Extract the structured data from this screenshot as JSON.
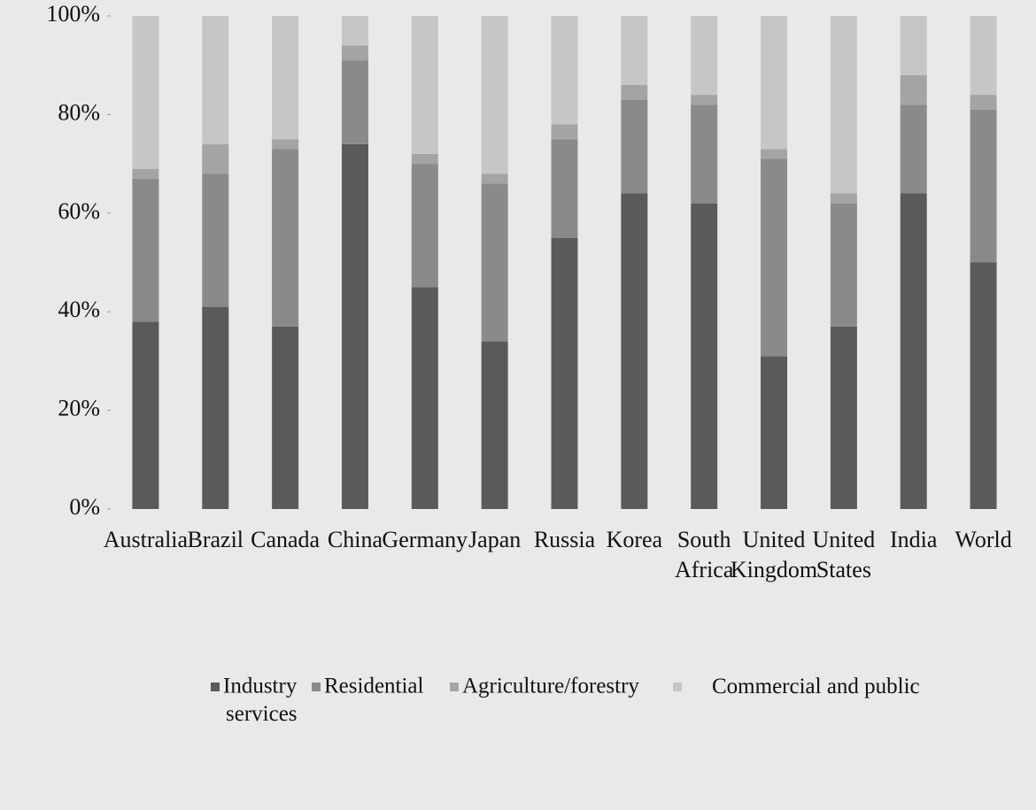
{
  "chart_data": {
    "type": "stacked_bar",
    "categories": [
      "Australia",
      "Brazil",
      "Canada",
      "China",
      "Germany",
      "Japan",
      "Russia",
      "Korea",
      "South Africa",
      "United Kingdom",
      "United States",
      "India",
      "World"
    ],
    "series": [
      {
        "name": "Industry",
        "color": "#5a5a5a",
        "values": [
          38,
          41,
          37,
          74,
          45,
          34,
          55,
          64,
          62,
          31,
          37,
          64,
          50
        ]
      },
      {
        "name": "Residential",
        "color": "#8a8a8a",
        "values": [
          29,
          27,
          36,
          17,
          25,
          32,
          20,
          19,
          20,
          40,
          25,
          18,
          31
        ]
      },
      {
        "name": "Agriculture/forestry",
        "color": "#a4a4a4",
        "values": [
          2,
          6,
          2,
          3,
          2,
          2,
          3,
          3,
          2,
          2,
          2,
          6,
          3
        ]
      },
      {
        "name": "Commercial and public services",
        "color": "#c6c6c6",
        "values": [
          31,
          26,
          25,
          6,
          28,
          32,
          22,
          14,
          16,
          27,
          36,
          12,
          16
        ]
      }
    ],
    "ylim": [
      0,
      100
    ],
    "yticks": [
      {
        "value": 0,
        "label": "0%"
      },
      {
        "value": 20,
        "label": "20%"
      },
      {
        "value": 40,
        "label": "40%"
      },
      {
        "value": 60,
        "label": "60%"
      },
      {
        "value": 80,
        "label": "80%"
      },
      {
        "value": 100,
        "label": "100%"
      }
    ]
  }
}
